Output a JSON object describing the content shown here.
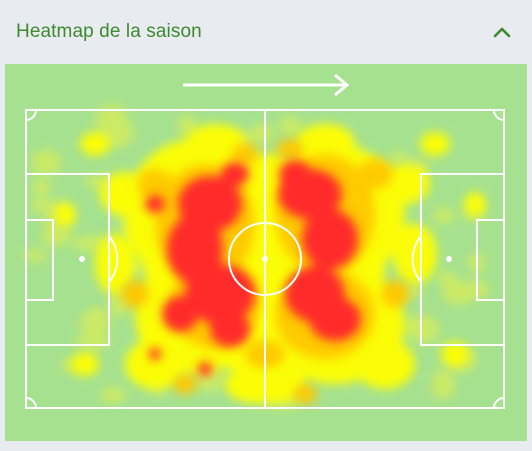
{
  "widget": {
    "title": "Heatmap de la saison",
    "collapse_icon": "chevron-up-icon"
  },
  "heatmap": {
    "direction_icon": "arrow-right-icon",
    "colors": {
      "pitch": "#a6e18f",
      "lines": "#ffffff",
      "low": "#d8ee58",
      "medium": "#ffff00",
      "high": "#ffc800",
      "very_high": "#ff2a2a",
      "accent": "#3c8a2e"
    }
  }
}
